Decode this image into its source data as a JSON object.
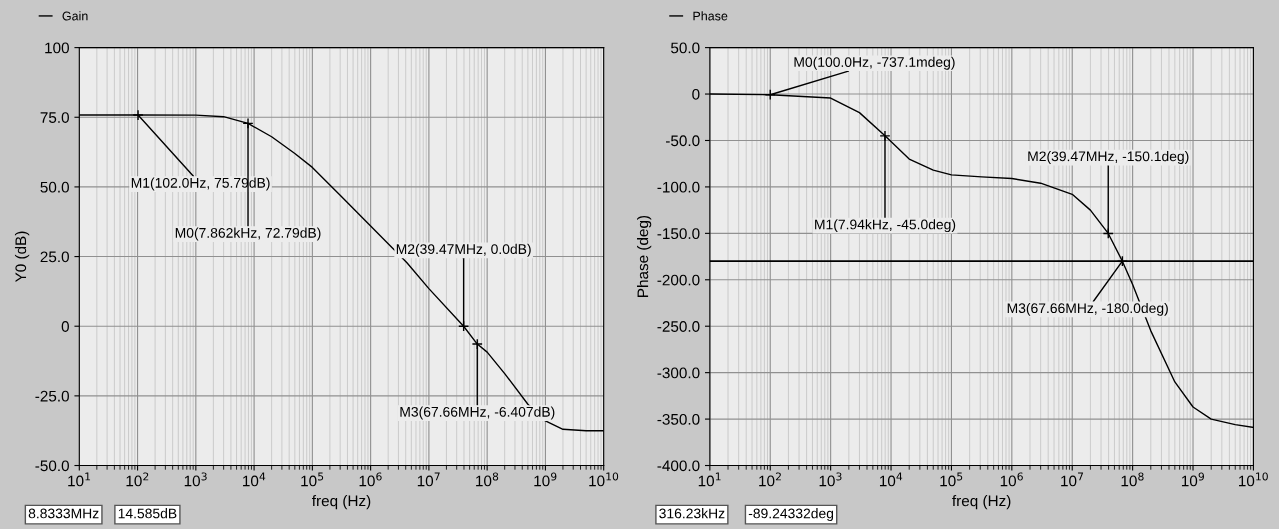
{
  "chart_data": [
    {
      "type": "line",
      "xlabel": "freq (Hz)",
      "ylabel": "Y0 (dB)",
      "log": "x",
      "grid": true,
      "legend": "top left",
      "marker": "none",
      "line_style": "solid",
      "xlim": [
        10,
        10000000000
      ],
      "xticks": [
        {
          "value": 10,
          "label": "10$^{1}$"
        },
        {
          "value": 100,
          "label": "10$^{2}$"
        },
        {
          "value": 1000,
          "label": "10$^{3}$"
        },
        {
          "value": 10000,
          "label": "10$^{4}$"
        },
        {
          "value": 100000,
          "label": "10$^{5}$"
        },
        {
          "value": 1000000,
          "label": "10$^{6}$"
        },
        {
          "value": 10000000,
          "label": "10$^{7}$"
        },
        {
          "value": 100000000,
          "label": "10$^{8}$"
        },
        {
          "value": 1000000000,
          "label": "10$^{9}$"
        },
        {
          "value": 10000000000,
          "label": "10$^{10}$"
        }
      ],
      "ylim": [
        -50,
        100
      ],
      "yticks": [
        {
          "value": -50,
          "label": "-50.0"
        },
        {
          "value": -25,
          "label": "-25.0"
        },
        {
          "value": 0,
          "label": "0"
        },
        {
          "value": 25,
          "label": "25.0"
        },
        {
          "value": 50,
          "label": "50.0"
        },
        {
          "value": 75,
          "label": "75.0"
        },
        {
          "value": 100,
          "label": "100"
        }
      ],
      "series": [
        {
          "name": "Gain",
          "color": "#000000",
          "x": [
            10,
            102,
            1000,
            3000,
            7862,
            20000,
            50000,
            100000,
            300000,
            1000000,
            4200000,
            10000000,
            39470000,
            67660000,
            100000000,
            200000000,
            500000000,
            1000000000,
            2000000000,
            5000000000,
            10000000000
          ],
          "values": [
            75.79,
            75.79,
            75.75,
            75.2,
            72.79,
            68,
            62,
            57,
            47,
            36,
            22.8,
            13.5,
            0,
            -6.407,
            -9.3,
            -17,
            -28,
            -34,
            -37,
            -37.5,
            -37.5
          ]
        }
      ],
      "annotations": [
        {
          "text": "M1(102.0Hz, 75.79dB)",
          "x": 102,
          "y": 75.79
        },
        {
          "text": "M0(7.862kHz, 72.79dB)",
          "x": 7862,
          "y": 72.79
        },
        {
          "text": "M2(39.47MHz, 0.0dB)",
          "x": 39470000,
          "y": 0
        },
        {
          "text": "M3(67.66MHz, -6.407dB)",
          "x": 67660000,
          "y": -6.407
        },
        "8.8333MHz",
        "14.585dB"
      ]
    },
    {
      "type": "line",
      "xlabel": "freq (Hz)",
      "ylabel": "Phase (deg)",
      "log": "x",
      "grid": true,
      "legend": "top left",
      "marker": "none",
      "line_style": "solid",
      "xlim": [
        10,
        10000000000
      ],
      "xticks": [
        {
          "value": 10,
          "label": "10$^{1}$"
        },
        {
          "value": 100,
          "label": "10$^{2}$"
        },
        {
          "value": 1000,
          "label": "10$^{3}$"
        },
        {
          "value": 10000,
          "label": "10$^{4}$"
        },
        {
          "value": 100000,
          "label": "10$^{5}$"
        },
        {
          "value": 1000000,
          "label": "10$^{6}$"
        },
        {
          "value": 10000000,
          "label": "10$^{7}$"
        },
        {
          "value": 100000000,
          "label": "10$^{8}$"
        },
        {
          "value": 1000000000,
          "label": "10$^{9}$"
        },
        {
          "value": 10000000000,
          "label": "10$^{10}$"
        }
      ],
      "ylim": [
        -400,
        50
      ],
      "yticks": [
        {
          "value": -400,
          "label": "-400.0"
        },
        {
          "value": -350,
          "label": "-350.0"
        },
        {
          "value": -300,
          "label": "-300.0"
        },
        {
          "value": -250,
          "label": "-250.0"
        },
        {
          "value": -200,
          "label": "-200.0"
        },
        {
          "value": -150,
          "label": "-150.0"
        },
        {
          "value": -100,
          "label": "-100.0"
        },
        {
          "value": -50,
          "label": "-50.0"
        },
        {
          "value": 0,
          "label": "0"
        },
        {
          "value": 50,
          "label": "50.0"
        }
      ],
      "ref_lines": [
        {
          "axis": "y",
          "value": -180,
          "color": "#000000"
        }
      ],
      "series": [
        {
          "name": "Phase",
          "color": "#000000",
          "x": [
            10,
            100,
            1000,
            3000,
            7940,
            20000,
            50000,
            100000,
            316230,
            1000000,
            3000000,
            10000000,
            20000000,
            39470000,
            67660000,
            100000000,
            200000000,
            500000000,
            1000000000,
            2000000000,
            5000000000,
            10000000000
          ],
          "values": [
            0,
            -0.7371,
            -4.3,
            -20,
            -45,
            -70,
            -82,
            -87,
            -89.24,
            -91,
            -96,
            -108,
            -125,
            -150.1,
            -180,
            -205,
            -255,
            -310,
            -337,
            -350,
            -356,
            -359
          ]
        }
      ],
      "annotations": [
        {
          "text": "M0(100.0Hz, -737.1mdeg)",
          "x": 100,
          "y": -0.7371
        },
        {
          "text": "M1(7.94kHz, -45.0deg)",
          "x": 7940,
          "y": -45
        },
        {
          "text": "M2(39.47MHz, -150.1deg)",
          "x": 39470000,
          "y": -150.1
        },
        {
          "text": "M3(67.66MHz, -180.0deg)",
          "x": 67660000,
          "y": -180
        },
        "316.23kHz",
        "-89.24332deg"
      ]
    }
  ]
}
